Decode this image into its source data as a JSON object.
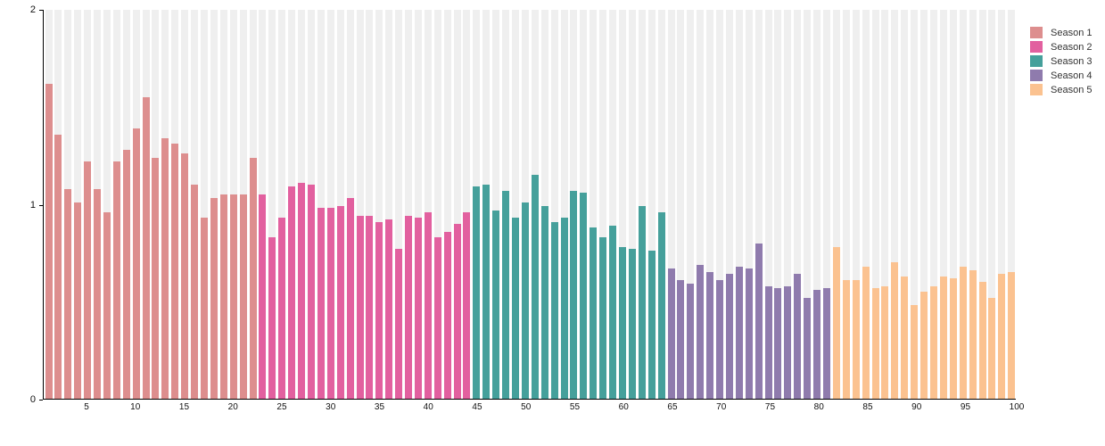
{
  "chart_data": {
    "type": "bar",
    "title": "",
    "xlabel": "",
    "ylabel": "",
    "ylim": [
      0,
      2
    ],
    "y_ticks": [
      "0",
      "1",
      "2"
    ],
    "x_ticks": [
      5,
      10,
      15,
      20,
      25,
      30,
      35,
      40,
      45,
      50,
      55,
      60,
      65,
      70,
      75,
      80,
      85,
      90,
      95,
      100
    ],
    "x_range": [
      1,
      100
    ],
    "grid": "striped-background-columns",
    "legend_position": "top-right",
    "series": [
      {
        "name": "Season 1",
        "color": "#dd8e8e",
        "start_episode": 1,
        "values": [
          1.62,
          1.36,
          1.08,
          1.01,
          1.22,
          1.08,
          0.96,
          1.22,
          1.28,
          1.39,
          1.55,
          1.24,
          1.34,
          1.31,
          1.26,
          1.1,
          0.93,
          1.03,
          1.05,
          1.05,
          1.05,
          1.24
        ]
      },
      {
        "name": "Season 2",
        "color": "#e2609f",
        "start_episode": 23,
        "values": [
          1.05,
          0.83,
          0.93,
          1.09,
          1.11,
          1.1,
          0.98,
          0.98,
          0.99,
          1.03,
          0.94,
          0.94,
          0.91,
          0.92,
          0.77,
          0.94,
          0.93,
          0.96,
          0.83,
          0.86,
          0.9,
          0.96
        ]
      },
      {
        "name": "Season 3",
        "color": "#45a09b",
        "start_episode": 45,
        "values": [
          1.09,
          1.1,
          0.97,
          1.07,
          0.93,
          1.01,
          1.15,
          0.99,
          0.91,
          0.93,
          1.07,
          1.06,
          0.88,
          0.83,
          0.89,
          0.78,
          0.77,
          0.99,
          0.76,
          0.96
        ]
      },
      {
        "name": "Season 4",
        "color": "#8f7bad",
        "start_episode": 65,
        "values": [
          0.67,
          0.61,
          0.59,
          0.69,
          0.65,
          0.61,
          0.64,
          0.68,
          0.67,
          0.8,
          0.58,
          0.57,
          0.58,
          0.64,
          0.52,
          0.56,
          0.57
        ]
      },
      {
        "name": "Season 5",
        "color": "#fbc290",
        "start_episode": 82,
        "values": [
          0.78,
          0.61,
          0.61,
          0.68,
          0.57,
          0.58,
          0.7,
          0.63,
          0.48,
          0.55,
          0.58,
          0.63,
          0.62,
          0.68,
          0.66,
          0.6,
          0.52,
          0.64,
          0.65
        ]
      }
    ]
  },
  "legend": {
    "items": [
      {
        "label": "Season 1",
        "color": "#dd8e8e"
      },
      {
        "label": "Season 2",
        "color": "#e2609f"
      },
      {
        "label": "Season 3",
        "color": "#45a09b"
      },
      {
        "label": "Season 4",
        "color": "#8f7bad"
      },
      {
        "label": "Season 5",
        "color": "#fbc290"
      }
    ]
  },
  "colors": {
    "background_stripe": "#efefef",
    "axis": "#000000",
    "tick_text": "#111111",
    "legend_text": "#333333"
  }
}
